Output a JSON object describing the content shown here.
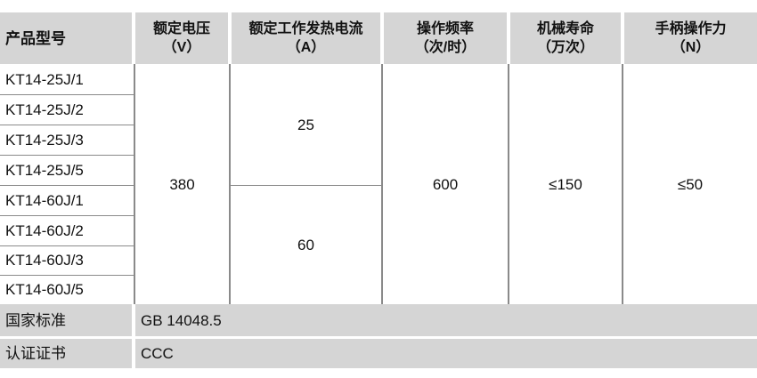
{
  "headers": [
    {
      "title": "产品型号",
      "unit": ""
    },
    {
      "title": "额定电压",
      "unit": "（V）"
    },
    {
      "title": "额定工作发热电流",
      "unit": "（A）"
    },
    {
      "title": "操作频率",
      "unit": "（次/时）"
    },
    {
      "title": "机械寿命",
      "unit": "（万次）"
    },
    {
      "title": "手柄操作力",
      "unit": "（N）"
    }
  ],
  "models": [
    "KT14-25J/1",
    "KT14-25J/2",
    "KT14-25J/3",
    "KT14-25J/5",
    "KT14-60J/1",
    "KT14-60J/2",
    "KT14-60J/3",
    "KT14-60J/5"
  ],
  "values": {
    "voltage": "380",
    "current_25": "25",
    "current_60": "60",
    "frequency": "600",
    "life": "≤150",
    "force": "≤50"
  },
  "footer": [
    {
      "label": "国家标准",
      "value": "GB 14048.5"
    },
    {
      "label": "认证证书",
      "value": "CCC"
    }
  ]
}
